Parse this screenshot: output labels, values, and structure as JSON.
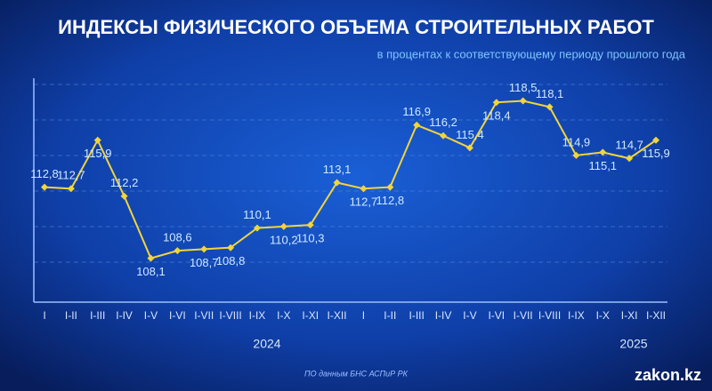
{
  "chart_data": {
    "type": "line",
    "title": "ИНДЕКСЫ ФИЗИЧЕСКОГО ОБЪЕМА СТРОИТЕЛЬНЫХ РАБОТ",
    "subtitle": "в процентах к соответствующему периоду прошлого года",
    "categories": [
      "I",
      "I-II",
      "I-III",
      "I-IV",
      "I-V",
      "I-VI",
      "I-VII",
      "I-VIII",
      "I-IX",
      "I-X",
      "I-XI",
      "I-XII",
      "I",
      "I-II",
      "I-III",
      "I-IV",
      "I-V",
      "I-VI",
      "I-VII",
      "I-VIII",
      "I-IX",
      "I-X",
      "I-XI",
      "I-XII"
    ],
    "groups": [
      "2024",
      "2025"
    ],
    "values": [
      112.8,
      112.7,
      115.9,
      112.2,
      108.1,
      108.6,
      108.7,
      108.8,
      110.1,
      110.2,
      110.3,
      113.1,
      112.7,
      112.8,
      116.9,
      116.2,
      115.4,
      118.4,
      118.5,
      118.1,
      114.9,
      115.1,
      114.7,
      115.9
    ],
    "value_labels": [
      "112,8",
      "112,7",
      "115,9",
      "112,2",
      "108,1",
      "108,6",
      "108,7",
      "108,8",
      "110,1",
      "110,2",
      "110,3",
      "113,1",
      "112,7",
      "112,8",
      "116,9",
      "116,2",
      "115,4",
      "118,4",
      "118,5",
      "118,1",
      "114,9",
      "115,1",
      "114,7",
      "115,9"
    ],
    "color": "#f2d43c",
    "ylim": [
      105.2,
      120
    ],
    "source": "ПО данным БНС АСПиР РК",
    "logo": "zakon.kz"
  }
}
